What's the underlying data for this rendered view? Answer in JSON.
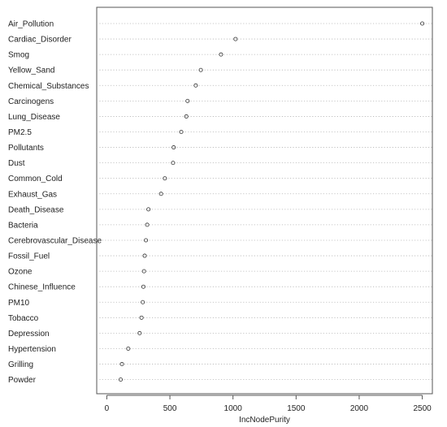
{
  "chart_data": {
    "type": "scatter",
    "xlabel": "IncNodePurity",
    "xlim": [
      -80,
      2580
    ],
    "xticks": [
      0,
      500,
      1000,
      1500,
      2000,
      2500
    ],
    "grid": "horizontal dotted",
    "point_color": "#333333",
    "categories": [
      "Air_Pollution",
      "Cardiac_Disorder",
      "Smog",
      "Yellow_Sand",
      "Chemical_Substances",
      "Carcinogens",
      "Lung_Disease",
      "PM2.5",
      "Pollutants",
      "Dust",
      "Common_Cold",
      "Exhaust_Gas",
      "Death_Disease",
      "Bacteria",
      "Cerebrovascular_Disease",
      "Fossil_Fuel",
      "Ozone",
      "Chinese_Influence",
      "PM10",
      "Tobacco",
      "Depression",
      "Hypertension",
      "Grilling",
      "Powder"
    ],
    "values": [
      2500,
      1020,
      905,
      745,
      705,
      640,
      630,
      590,
      530,
      525,
      460,
      430,
      330,
      320,
      310,
      300,
      295,
      290,
      285,
      275,
      260,
      170,
      120,
      110
    ]
  }
}
